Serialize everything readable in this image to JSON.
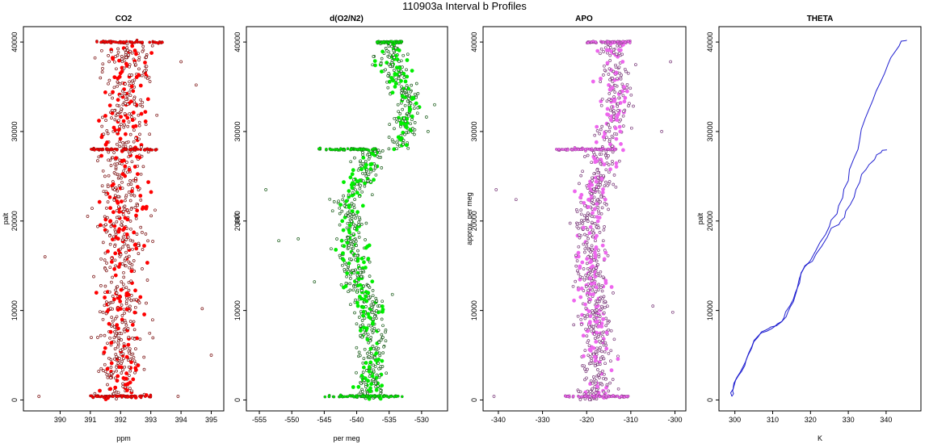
{
  "figure": {
    "title": "110903a   Interval b Profiles"
  },
  "chart_data": [
    {
      "id": "co2",
      "type": "scatter",
      "title": "CO2",
      "xlabel": "ppm",
      "ylabel": "palt",
      "xlim": [
        389,
        395.2
      ],
      "ylim": [
        -500,
        41000
      ],
      "xticks": [
        "390",
        "391",
        "392",
        "393",
        "394",
        "395"
      ],
      "yticks": [
        "0",
        "10000",
        "20000",
        "30000",
        "40000"
      ],
      "colors": {
        "points": "#ff0000",
        "edge": "#7a1010"
      },
      "profile": [
        [
          0,
          392.0
        ],
        [
          5000,
          392.0
        ],
        [
          10000,
          392.0
        ],
        [
          15000,
          392.1
        ],
        [
          20000,
          392.0
        ],
        [
          25000,
          392.1
        ],
        [
          28000,
          392.1
        ],
        [
          30000,
          392.1
        ],
        [
          35000,
          392.2
        ],
        [
          40000,
          392.3
        ]
      ],
      "spread": 0.8,
      "bands": [
        {
          "y": 400,
          "x": [
            391.0,
            393.0
          ]
        },
        {
          "y": 28000,
          "x": [
            391.0,
            393.2
          ]
        },
        {
          "y": 40000,
          "x": [
            391.2,
            393.4
          ]
        }
      ],
      "outliers": [
        [
          394.0,
          37800
        ],
        [
          394.5,
          35200
        ],
        [
          394.7,
          10200
        ],
        [
          395.0,
          5000
        ],
        [
          389.5,
          16000
        ],
        [
          389.3,
          400
        ],
        [
          393.9,
          400
        ]
      ]
    },
    {
      "id": "o2n2",
      "type": "scatter",
      "title": "d(O2/N2)",
      "xlabel": "per meg",
      "ylabel": "palt",
      "xlim": [
        -556,
        -527
      ],
      "ylim": [
        -500,
        41000
      ],
      "xticks": [
        "-555",
        "-550",
        "-545",
        "-540",
        "-535",
        "-530"
      ],
      "yticks": [
        "0",
        "10000",
        "20000",
        "30000",
        "40000"
      ],
      "colors": {
        "points": "#00ee00",
        "edge": "#1a5c1a"
      },
      "profile": [
        [
          0,
          -538
        ],
        [
          5000,
          -537.5
        ],
        [
          10000,
          -538
        ],
        [
          13000,
          -540
        ],
        [
          15000,
          -540
        ],
        [
          18000,
          -541
        ],
        [
          20000,
          -540
        ],
        [
          22000,
          -542
        ],
        [
          24000,
          -540
        ],
        [
          26000,
          -538
        ],
        [
          27900,
          -538
        ],
        [
          28100,
          -534
        ],
        [
          30000,
          -532
        ],
        [
          32000,
          -532
        ],
        [
          35000,
          -533
        ],
        [
          38000,
          -535
        ],
        [
          40000,
          -535
        ]
      ],
      "spread": 2.2,
      "bands": [
        {
          "y": 400,
          "x": [
            -545,
            -533
          ]
        },
        {
          "y": 28000,
          "x": [
            -546,
            -537
          ]
        },
        {
          "y": 40000,
          "x": [
            -537,
            -533
          ]
        }
      ],
      "outliers": [
        [
          -554,
          23500
        ],
        [
          -552,
          17800
        ],
        [
          -549,
          18000
        ],
        [
          -546.5,
          13200
        ],
        [
          -534.5,
          11800
        ],
        [
          -529,
          30000
        ],
        [
          -528,
          33000
        ]
      ]
    },
    {
      "id": "apo",
      "type": "scatter",
      "title": "APO",
      "xlabel": "",
      "ylabel": "approx. per meg",
      "xlim": [
        -342,
        -299
      ],
      "ylim": [
        -500,
        41000
      ],
      "xticks": [
        "-340",
        "-330",
        "-320",
        "-310",
        "-300"
      ],
      "yticks": [
        "0",
        "10000",
        "20000",
        "30000",
        "40000"
      ],
      "colors": {
        "points": "#ee66ee",
        "edge": "#7a3a7a"
      },
      "profile": [
        [
          0,
          -318
        ],
        [
          5000,
          -318
        ],
        [
          10000,
          -318
        ],
        [
          15000,
          -319
        ],
        [
          20000,
          -320
        ],
        [
          25000,
          -317
        ],
        [
          28000,
          -316
        ],
        [
          30000,
          -314
        ],
        [
          35000,
          -313
        ],
        [
          40000,
          -314
        ]
      ],
      "spread": 3.5,
      "bands": [
        {
          "y": 400,
          "x": [
            -325,
            -310
          ]
        },
        {
          "y": 28000,
          "x": [
            -327,
            -313
          ]
        },
        {
          "y": 40000,
          "x": [
            -320,
            -310
          ]
        }
      ],
      "outliers": [
        [
          -340.5,
          23500
        ],
        [
          -341,
          400
        ],
        [
          -303,
          30000
        ],
        [
          -300.5,
          9800
        ],
        [
          -301,
          37800
        ],
        [
          -336,
          22400
        ],
        [
          -305,
          10500
        ]
      ]
    },
    {
      "id": "theta",
      "type": "line",
      "title": "THETA",
      "xlabel": "K",
      "ylabel": "palt",
      "xlim": [
        297.5,
        347.5
      ],
      "ylim": [
        -500,
        41000
      ],
      "xticks": [
        "300",
        "310",
        "320",
        "330",
        "340"
      ],
      "yticks": [
        "0",
        "10000",
        "20000",
        "30000",
        "40000"
      ],
      "colors": {
        "line": "#2020d0"
      },
      "series": [
        {
          "x": [
            299.2,
            299.5,
            300.5,
            302,
            303.5,
            305,
            307,
            309,
            311,
            313,
            314.5,
            316,
            317.5,
            318.5,
            320,
            322.5,
            325,
            327,
            328.5,
            330,
            331.5,
            333,
            334.5,
            336.5,
            338.5,
            340.5,
            342.5,
            344,
            345.5
          ],
          "y": [
            400,
            1200,
            2500,
            3600,
            5000,
            6500,
            7600,
            8000,
            8300,
            9200,
            10500,
            12000,
            14200,
            15000,
            15600,
            17600,
            19400,
            20800,
            22600,
            24500,
            27000,
            29000,
            31500,
            33500,
            35500,
            37500,
            39000,
            40100,
            40200
          ]
        },
        {
          "x": [
            299.2,
            299.4,
            300.2,
            301.8,
            303,
            304.5,
            306.5,
            308.5,
            310.5,
            312.5,
            314,
            315.5,
            317,
            318.5,
            320.5,
            323,
            325.5,
            327.5,
            329,
            330.5,
            332,
            333.5,
            335.5,
            337.5,
            339,
            340
          ],
          "y": [
            400,
            1000,
            2200,
            3200,
            4500,
            6000,
            7300,
            7700,
            8200,
            8800,
            9800,
            11000,
            13500,
            14900,
            15500,
            17200,
            19200,
            19600,
            20400,
            21800,
            23500,
            25200,
            26300,
            27400,
            27900,
            28000
          ]
        }
      ]
    }
  ]
}
